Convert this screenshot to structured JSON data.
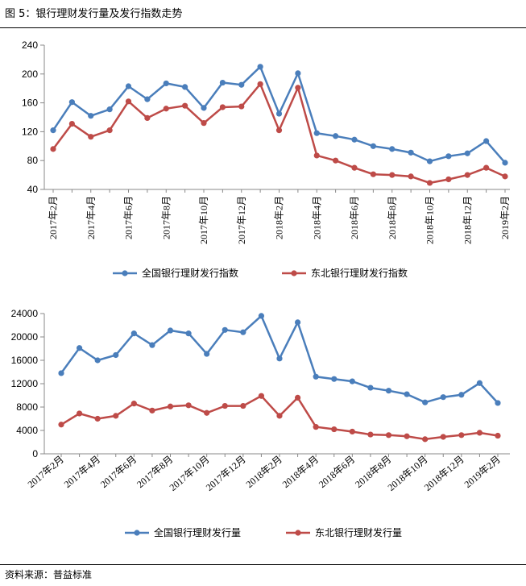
{
  "header": {
    "title": "图 5：银行理财发行量及发行指数走势"
  },
  "footer": {
    "source": "资料来源：普益标准"
  },
  "colors": {
    "blue": "#4A7EBB",
    "red": "#BE4B48",
    "axis": "#888888"
  },
  "chart_data": [
    {
      "type": "line",
      "categories": [
        "2017年2月",
        "2017年3月",
        "2017年4月",
        "2017年5月",
        "2017年6月",
        "2017年7月",
        "2017年8月",
        "2017年9月",
        "2017年10月",
        "2017年11月",
        "2017年12月",
        "2018年1月",
        "2018年2月",
        "2018年3月",
        "2018年4月",
        "2018年5月",
        "2018年6月",
        "2018年7月",
        "2018年8月",
        "2018年9月",
        "2018年10月",
        "2018年11月",
        "2018年12月",
        "2019年1月",
        "2019年2月"
      ],
      "tick_labels": [
        "2017年2月",
        "2017年4月",
        "2017年6月",
        "2017年8月",
        "2017年10月",
        "2017年12月",
        "2018年2月",
        "2018年4月",
        "2018年6月",
        "2018年8月",
        "2018年10月",
        "2018年12月",
        "2019年2月"
      ],
      "yticks": [
        "40",
        "80",
        "120",
        "160",
        "200",
        "240"
      ],
      "ylim": [
        40,
        240
      ],
      "series": [
        {
          "name": "全国银行理财发行指数",
          "color": "#4A7EBB",
          "values": [
            122,
            161,
            142,
            151,
            183,
            165,
            187,
            182,
            153,
            188,
            185,
            210,
            145,
            201,
            118,
            114,
            109,
            100,
            96,
            91,
            79,
            86,
            90,
            107,
            77
          ]
        },
        {
          "name": "东北银行理财发行指数",
          "color": "#BE4B48",
          "values": [
            96,
            131,
            113,
            122,
            162,
            139,
            152,
            156,
            132,
            154,
            155,
            186,
            122,
            181,
            87,
            80,
            70,
            61,
            60,
            58,
            49,
            54,
            60,
            70,
            58
          ]
        }
      ]
    },
    {
      "type": "line",
      "categories": [
        "2017年2月",
        "2017年3月",
        "2017年4月",
        "2017年5月",
        "2017年6月",
        "2017年7月",
        "2017年8月",
        "2017年9月",
        "2017年10月",
        "2017年11月",
        "2017年12月",
        "2018年1月",
        "2018年2月",
        "2018年3月",
        "2018年4月",
        "2018年5月",
        "2018年6月",
        "2018年7月",
        "2018年8月",
        "2018年9月",
        "2018年10月",
        "2018年11月",
        "2018年12月",
        "2019年1月",
        "2019年2月"
      ],
      "tick_labels": [
        "2017年2月",
        "2017年4月",
        "2017年6月",
        "2017年8月",
        "2017年10月",
        "2017年12月",
        "2018年2月",
        "2018年4月",
        "2018年6月",
        "2018年8月",
        "2018年10月",
        "2018年12月",
        "2019年2月"
      ],
      "yticks": [
        "0",
        "4000",
        "8000",
        "12000",
        "16000",
        "20000",
        "24000"
      ],
      "ylim": [
        0,
        24000
      ],
      "series": [
        {
          "name": "全国银行理财发行量",
          "color": "#4A7EBB",
          "values": [
            13800,
            18100,
            16000,
            16900,
            20600,
            18600,
            21100,
            20600,
            17100,
            21200,
            20800,
            23600,
            16300,
            22500,
            13200,
            12800,
            12400,
            11300,
            10800,
            10200,
            8800,
            9700,
            10100,
            12100,
            8700
          ]
        },
        {
          "name": "东北银行理财发行量",
          "color": "#BE4B48",
          "values": [
            5000,
            6900,
            6000,
            6500,
            8600,
            7400,
            8100,
            8300,
            7000,
            8200,
            8200,
            9900,
            6500,
            9600,
            4600,
            4200,
            3800,
            3300,
            3200,
            3000,
            2500,
            2900,
            3200,
            3600,
            3100
          ]
        }
      ]
    }
  ]
}
